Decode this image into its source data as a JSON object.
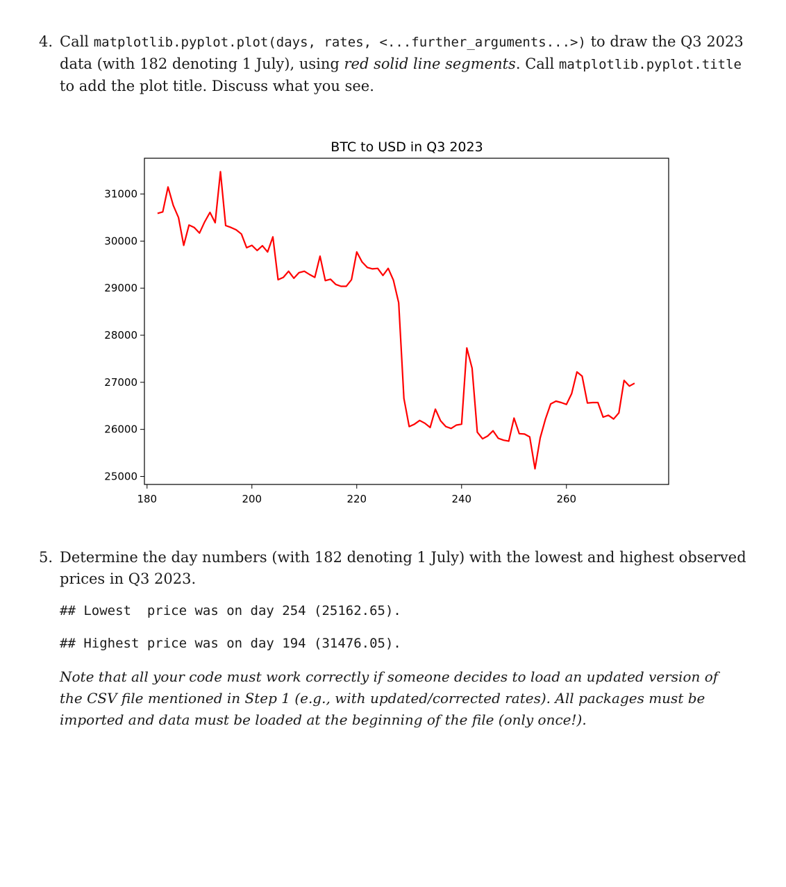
{
  "item4": {
    "number": "4.",
    "p1": "Call ",
    "code1": "matplotlib.pyplot.plot(days, rates, <...further_arguments...>)",
    "p2": " to draw the Q3 2023 data (with 182 denoting 1 July), using ",
    "em1": "red solid line segments",
    "p3": ". Call ",
    "code2": "matplotlib.pyplot.title",
    "p4": " to add the plot title. Discuss what you see."
  },
  "item5": {
    "number": "5.",
    "text": "Determine the day numbers (with 182 denoting 1 July) with the lowest and highest observed prices in Q3 2023."
  },
  "results": {
    "lowest": "## Lowest  price was on day 254 (25162.65).",
    "highest": "## Highest price was on day 194 (31476.05)."
  },
  "note": "Note that all your code must work correctly if someone decides to load an updated version of the CSV file mentioned in Step 1 (e.g., with updated/corrected rates). All packages must be imported and data must be loaded at the beginning of the file (only once!).",
  "chart_data": {
    "type": "line",
    "title": "BTC to USD in Q3 2023",
    "xlabel": "",
    "ylabel": "",
    "xlim": [
      179.5,
      279.5
    ],
    "ylim": [
      24830,
      31760
    ],
    "xticks": [
      180,
      200,
      220,
      240,
      260
    ],
    "yticks": [
      25000,
      26000,
      27000,
      28000,
      29000,
      30000,
      31000
    ],
    "line_color": "#ff0000",
    "x": [
      182,
      183,
      184,
      185,
      186,
      187,
      188,
      189,
      190,
      191,
      192,
      193,
      194,
      195,
      196,
      197,
      198,
      199,
      200,
      201,
      202,
      203,
      204,
      205,
      206,
      207,
      208,
      209,
      210,
      211,
      212,
      213,
      214,
      215,
      216,
      217,
      218,
      219,
      220,
      221,
      222,
      223,
      224,
      225,
      226,
      227,
      228,
      229,
      230,
      231,
      232,
      233,
      234,
      235,
      236,
      237,
      238,
      239,
      240,
      241,
      242,
      243,
      244,
      245,
      246,
      247,
      248,
      249,
      250,
      251,
      252,
      253,
      254,
      255,
      256,
      257,
      258,
      259,
      260,
      261,
      262,
      263,
      264,
      265,
      266,
      267,
      268,
      269,
      270,
      271,
      272,
      273
    ],
    "y": [
      30590,
      30620,
      31150,
      30760,
      30500,
      29910,
      30340,
      30290,
      30170,
      30410,
      30610,
      30390,
      31476.05,
      30330,
      30290,
      30240,
      30150,
      29860,
      29910,
      29800,
      29900,
      29770,
      30090,
      29180,
      29230,
      29360,
      29210,
      29330,
      29360,
      29290,
      29230,
      29680,
      29160,
      29190,
      29080,
      29040,
      29040,
      29180,
      29770,
      29560,
      29440,
      29410,
      29420,
      29270,
      29420,
      29170,
      28690,
      26660,
      26060,
      26110,
      26190,
      26130,
      26040,
      26430,
      26180,
      26060,
      26020,
      26090,
      26110,
      27730,
      27300,
      25940,
      25800,
      25860,
      25970,
      25810,
      25770,
      25750,
      26240,
      25910,
      25900,
      25840,
      25162.65,
      25820,
      26220,
      26540,
      26600,
      26570,
      26530,
      26760,
      27220,
      27130,
      26560,
      26570,
      26570,
      26260,
      26300,
      26220,
      26350,
      27040,
      26920,
      26980
    ]
  }
}
